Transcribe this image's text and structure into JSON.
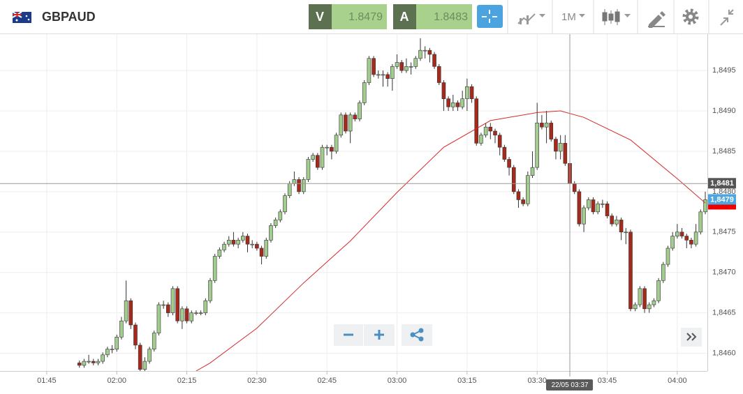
{
  "toolbar": {
    "symbol": "GBPAUD",
    "bid_label": "V",
    "bid": 1.8479,
    "ask_label": "A",
    "ask": 1.8483,
    "timeframe": "1M"
  },
  "chart_data": {
    "type": "candlestick",
    "x": [
      "01:52",
      "01:53",
      "01:54",
      "01:55",
      "01:56",
      "01:57",
      "01:58",
      "01:59",
      "02:00",
      "02:01",
      "02:02",
      "02:03",
      "02:04",
      "02:05",
      "02:06",
      "02:07",
      "02:08",
      "02:09",
      "02:10",
      "02:11",
      "02:12",
      "02:13",
      "02:14",
      "02:15",
      "02:16",
      "02:17",
      "02:18",
      "02:19",
      "02:20",
      "02:21",
      "02:22",
      "02:23",
      "02:24",
      "02:25",
      "02:26",
      "02:27",
      "02:28",
      "02:29",
      "02:30",
      "02:31",
      "02:32",
      "02:33",
      "02:34",
      "02:35",
      "02:36",
      "02:37",
      "02:38",
      "02:39",
      "02:40",
      "02:41",
      "02:42",
      "02:43",
      "02:44",
      "02:45",
      "02:46",
      "02:47",
      "02:48",
      "02:49",
      "02:50",
      "02:51",
      "02:52",
      "02:53",
      "02:54",
      "02:55",
      "02:56",
      "02:57",
      "02:58",
      "02:59",
      "03:00",
      "03:01",
      "03:02",
      "03:03",
      "03:04",
      "03:05",
      "03:06",
      "03:07",
      "03:08",
      "03:09",
      "03:10",
      "03:11",
      "03:12",
      "03:13",
      "03:14",
      "03:15",
      "03:16",
      "03:17",
      "03:18",
      "03:19",
      "03:20",
      "03:21",
      "03:22",
      "03:23",
      "03:24",
      "03:25",
      "03:26",
      "03:27",
      "03:28",
      "03:29",
      "03:30",
      "03:31",
      "03:32",
      "03:33",
      "03:34",
      "03:35",
      "03:36",
      "03:37",
      "03:38",
      "03:39",
      "03:40",
      "03:41",
      "03:42",
      "03:43",
      "03:44",
      "03:45",
      "03:46",
      "03:47",
      "03:48",
      "03:49",
      "03:50",
      "03:51",
      "03:52",
      "03:53",
      "03:54",
      "03:55",
      "03:56",
      "03:57",
      "03:58",
      "03:59",
      "04:00",
      "04:01",
      "04:02",
      "04:03",
      "04:04",
      "04:05",
      "04:06"
    ],
    "ohlc": [
      [
        1.84588,
        1.84591,
        1.84582,
        1.84585
      ],
      [
        1.84585,
        1.84593,
        1.84582,
        1.8459
      ],
      [
        1.8459,
        1.84598,
        1.84587,
        1.8459
      ],
      [
        1.8459,
        1.84593,
        1.84585,
        1.84588
      ],
      [
        1.84588,
        1.84593,
        1.84585,
        1.8459
      ],
      [
        1.8459,
        1.84601,
        1.84587,
        1.84598
      ],
      [
        1.84598,
        1.84608,
        1.84595,
        1.84605
      ],
      [
        1.84605,
        1.8461,
        1.846,
        1.84605
      ],
      [
        1.84605,
        1.84623,
        1.84602,
        1.8462
      ],
      [
        1.8462,
        1.84645,
        1.84617,
        1.8464
      ],
      [
        1.8464,
        1.8469,
        1.84637,
        1.84665
      ],
      [
        1.84665,
        1.84668,
        1.8463,
        1.84635
      ],
      [
        1.84635,
        1.84638,
        1.84605,
        1.8461
      ],
      [
        1.8461,
        1.84613,
        1.84577,
        1.8458
      ],
      [
        1.8458,
        1.84595,
        1.84577,
        1.8459
      ],
      [
        1.8459,
        1.84608,
        1.84587,
        1.84605
      ],
      [
        1.84605,
        1.84628,
        1.84602,
        1.84625
      ],
      [
        1.84625,
        1.84663,
        1.84622,
        1.8466
      ],
      [
        1.8466,
        1.84665,
        1.84655,
        1.8466
      ],
      [
        1.8466,
        1.84663,
        1.84645,
        1.8465
      ],
      [
        1.8465,
        1.84683,
        1.84647,
        1.8468
      ],
      [
        1.8468,
        1.84683,
        1.84637,
        1.8464
      ],
      [
        1.8464,
        1.84658,
        1.8463,
        1.84655
      ],
      [
        1.84655,
        1.84658,
        1.84637,
        1.8464
      ],
      [
        1.8464,
        1.84653,
        1.84637,
        1.8465
      ],
      [
        1.8465,
        1.84653,
        1.84647,
        1.8465
      ],
      [
        1.8465,
        1.84653,
        1.84647,
        1.8465
      ],
      [
        1.8465,
        1.84668,
        1.84647,
        1.84665
      ],
      [
        1.84665,
        1.84693,
        1.84662,
        1.8469
      ],
      [
        1.8469,
        1.84723,
        1.84687,
        1.8472
      ],
      [
        1.8472,
        1.84731,
        1.84717,
        1.84728
      ],
      [
        1.84728,
        1.84738,
        1.84725,
        1.84735
      ],
      [
        1.84735,
        1.84745,
        1.84732,
        1.8474
      ],
      [
        1.8474,
        1.8475,
        1.84732,
        1.84735
      ],
      [
        1.84735,
        1.84743,
        1.8473,
        1.8474
      ],
      [
        1.8474,
        1.8475,
        1.84737,
        1.84745
      ],
      [
        1.84745,
        1.84748,
        1.84725,
        1.84735
      ],
      [
        1.84735,
        1.8474,
        1.8473,
        1.84735
      ],
      [
        1.84735,
        1.84738,
        1.84727,
        1.8473
      ],
      [
        1.8473,
        1.84733,
        1.8471,
        1.8472
      ],
      [
        1.8472,
        1.84743,
        1.84717,
        1.8474
      ],
      [
        1.8474,
        1.84761,
        1.84737,
        1.84758
      ],
      [
        1.84758,
        1.84768,
        1.84755,
        1.84765
      ],
      [
        1.84765,
        1.84778,
        1.84762,
        1.84775
      ],
      [
        1.84775,
        1.84798,
        1.84772,
        1.84795
      ],
      [
        1.84795,
        1.84813,
        1.84792,
        1.8481
      ],
      [
        1.8481,
        1.84825,
        1.84807,
        1.84815
      ],
      [
        1.84815,
        1.84818,
        1.84797,
        1.848
      ],
      [
        1.848,
        1.84818,
        1.84797,
        1.84815
      ],
      [
        1.84815,
        1.84843,
        1.84812,
        1.8484
      ],
      [
        1.8484,
        1.84848,
        1.84837,
        1.84845
      ],
      [
        1.84845,
        1.84848,
        1.84827,
        1.8483
      ],
      [
        1.8483,
        1.84858,
        1.84827,
        1.84855
      ],
      [
        1.84855,
        1.84858,
        1.84845,
        1.84855
      ],
      [
        1.84855,
        1.84858,
        1.8484,
        1.8485
      ],
      [
        1.8485,
        1.84873,
        1.84847,
        1.8487
      ],
      [
        1.8487,
        1.84898,
        1.84867,
        1.84895
      ],
      [
        1.84895,
        1.84898,
        1.84872,
        1.84875
      ],
      [
        1.84875,
        1.84898,
        1.8486,
        1.84895
      ],
      [
        1.84895,
        1.84898,
        1.84887,
        1.8489
      ],
      [
        1.8489,
        1.84913,
        1.84887,
        1.8491
      ],
      [
        1.8491,
        1.84938,
        1.84907,
        1.84935
      ],
      [
        1.84935,
        1.84968,
        1.84932,
        1.84965
      ],
      [
        1.84965,
        1.84968,
        1.84942,
        1.84945
      ],
      [
        1.84945,
        1.8495,
        1.8494,
        1.84945
      ],
      [
        1.84945,
        1.8495,
        1.8493,
        1.84945
      ],
      [
        1.84945,
        1.84948,
        1.8493,
        1.8494
      ],
      [
        1.8494,
        1.84958,
        1.84925,
        1.84955
      ],
      [
        1.84955,
        1.8497,
        1.84952,
        1.8496
      ],
      [
        1.8496,
        1.84963,
        1.84947,
        1.8495
      ],
      [
        1.8495,
        1.84965,
        1.84947,
        1.84955
      ],
      [
        1.84955,
        1.8496,
        1.84945,
        1.84955
      ],
      [
        1.84955,
        1.84968,
        1.84952,
        1.84965
      ],
      [
        1.84965,
        1.8499,
        1.84962,
        1.84975
      ],
      [
        1.84975,
        1.8498,
        1.84965,
        1.84975
      ],
      [
        1.84975,
        1.84978,
        1.8496,
        1.8497
      ],
      [
        1.8497,
        1.84973,
        1.84952,
        1.84955
      ],
      [
        1.84955,
        1.84958,
        1.84932,
        1.84935
      ],
      [
        1.84935,
        1.84938,
        1.849,
        1.84915
      ],
      [
        1.84915,
        1.84918,
        1.849,
        1.84905
      ],
      [
        1.84905,
        1.8492,
        1.849,
        1.8491
      ],
      [
        1.8491,
        1.84913,
        1.849,
        1.84905
      ],
      [
        1.84905,
        1.84925,
        1.84902,
        1.84915
      ],
      [
        1.84915,
        1.8494,
        1.849,
        1.8493
      ],
      [
        1.8493,
        1.84933,
        1.8491,
        1.84915
      ],
      [
        1.84915,
        1.84918,
        1.84857,
        1.8486
      ],
      [
        1.8486,
        1.84873,
        1.84857,
        1.8487
      ],
      [
        1.8487,
        1.84885,
        1.84867,
        1.8488
      ],
      [
        1.8488,
        1.84885,
        1.84865,
        1.84875
      ],
      [
        1.84875,
        1.84878,
        1.8486,
        1.8487
      ],
      [
        1.8487,
        1.84873,
        1.84845,
        1.84855
      ],
      [
        1.84855,
        1.84858,
        1.84837,
        1.8484
      ],
      [
        1.8484,
        1.84843,
        1.8482,
        1.8483
      ],
      [
        1.8483,
        1.84833,
        1.84797,
        1.848
      ],
      [
        1.848,
        1.84803,
        1.8478,
        1.8479
      ],
      [
        1.8479,
        1.84793,
        1.84782,
        1.84785
      ],
      [
        1.84785,
        1.84825,
        1.84782,
        1.8482
      ],
      [
        1.8482,
        1.8485,
        1.84817,
        1.8483
      ],
      [
        1.8483,
        1.8491,
        1.84827,
        1.84885
      ],
      [
        1.84885,
        1.84895,
        1.84877,
        1.8488
      ],
      [
        1.8488,
        1.849,
        1.8486,
        1.84885
      ],
      [
        1.84885,
        1.84888,
        1.84862,
        1.84865
      ],
      [
        1.84865,
        1.84868,
        1.8484,
        1.8485
      ],
      [
        1.8485,
        1.8487,
        1.8484,
        1.8486
      ],
      [
        1.8486,
        1.8487,
        1.84832,
        1.84835
      ],
      [
        1.84835,
        1.84838,
        1.84807,
        1.8481
      ],
      [
        1.8481,
        1.84813,
        1.84797,
        1.848
      ],
      [
        1.848,
        1.84803,
        1.84757,
        1.8476
      ],
      [
        1.8476,
        1.84783,
        1.8475,
        1.8478
      ],
      [
        1.8478,
        1.84793,
        1.84777,
        1.8479
      ],
      [
        1.8479,
        1.84793,
        1.84772,
        1.84775
      ],
      [
        1.84775,
        1.84788,
        1.84772,
        1.84785
      ],
      [
        1.84785,
        1.8479,
        1.8478,
        1.84785
      ],
      [
        1.84785,
        1.84788,
        1.84767,
        1.8477
      ],
      [
        1.8477,
        1.84773,
        1.84757,
        1.8476
      ],
      [
        1.8476,
        1.8477,
        1.84757,
        1.84765
      ],
      [
        1.84765,
        1.84768,
        1.8474,
        1.8475
      ],
      [
        1.8475,
        1.84755,
        1.84735,
        1.8475
      ],
      [
        1.8475,
        1.84753,
        1.84652,
        1.84655
      ],
      [
        1.84655,
        1.84663,
        1.84652,
        1.8466
      ],
      [
        1.8466,
        1.84683,
        1.84657,
        1.8468
      ],
      [
        1.8468,
        1.84683,
        1.8465,
        1.84655
      ],
      [
        1.84655,
        1.84663,
        1.8465,
        1.8466
      ],
      [
        1.8466,
        1.84668,
        1.84657,
        1.84665
      ],
      [
        1.84665,
        1.84693,
        1.84662,
        1.8469
      ],
      [
        1.8469,
        1.84713,
        1.84687,
        1.8471
      ],
      [
        1.8471,
        1.84733,
        1.84707,
        1.8473
      ],
      [
        1.8473,
        1.8475,
        1.84727,
        1.84745
      ],
      [
        1.84745,
        1.8476,
        1.84742,
        1.8475
      ],
      [
        1.8475,
        1.84755,
        1.84742,
        1.84745
      ],
      [
        1.84745,
        1.84748,
        1.8473,
        1.8474
      ],
      [
        1.8474,
        1.84743,
        1.8473,
        1.84735
      ],
      [
        1.84735,
        1.8476,
        1.84732,
        1.8475
      ],
      [
        1.8475,
        1.84778,
        1.84747,
        1.84775
      ],
      [
        1.84775,
        1.848,
        1.84772,
        1.8479
      ]
    ],
    "up_color": "#a3cc8f",
    "down_color": "#a52a1c",
    "ma": {
      "x": [
        "02:17",
        "02:20",
        "02:30",
        "02:40",
        "02:50",
        "03:00",
        "03:10",
        "03:20",
        "03:30",
        "03:35",
        "03:40",
        "03:50",
        "04:00",
        "04:06"
      ],
      "values": [
        1.84578,
        1.84588,
        1.84631,
        1.84687,
        1.84739,
        1.84799,
        1.84855,
        1.84888,
        1.84898,
        1.849,
        1.84892,
        1.84864,
        1.84816,
        1.84786
      ],
      "color": "#d42a2a"
    },
    "xlim": [
      "01:35",
      "04:06"
    ],
    "xticks": [
      "01:45",
      "02:00",
      "02:15",
      "02:30",
      "02:45",
      "03:00",
      "03:15",
      "03:30",
      "03:45",
      "04:00"
    ],
    "ylim": [
      1.84578,
      1.84995
    ],
    "yticks": [
      {
        "value": 1.846,
        "label": "1,8460"
      },
      {
        "value": 1.8465,
        "label": "1,8465"
      },
      {
        "value": 1.847,
        "label": "1,8470"
      },
      {
        "value": 1.8475,
        "label": "1,8475"
      },
      {
        "value": 1.848,
        "label": "1,8480"
      },
      {
        "value": 1.8485,
        "label": "1,8485"
      },
      {
        "value": 1.849,
        "label": "1,8490"
      },
      {
        "value": 1.8495,
        "label": "1,8495"
      }
    ],
    "grid": true,
    "crosshair": {
      "price": {
        "value": 1.8481,
        "label": "1,8481"
      },
      "time": "03:37",
      "time_label": "22/05 03:37"
    },
    "last_price": {
      "value": 1.8479,
      "label": "1,8479"
    }
  }
}
